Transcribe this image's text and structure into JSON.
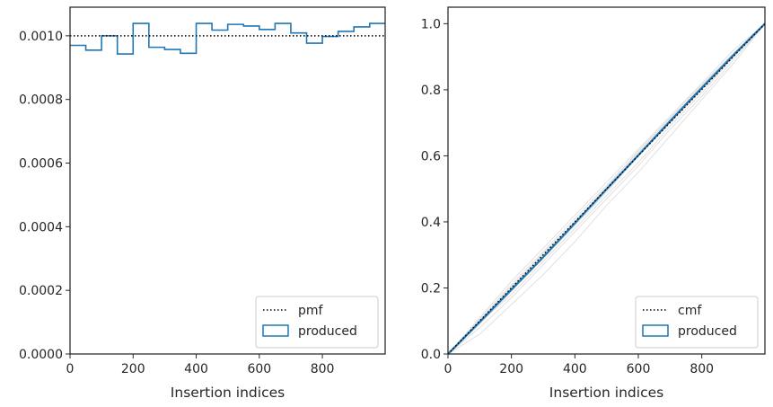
{
  "chart_data": [
    {
      "type": "line",
      "subtype": "step-histogram",
      "xlabel": "Insertion indices",
      "ylabel": "",
      "xlim": [
        0,
        999
      ],
      "ylim": [
        0,
        0.00109
      ],
      "x_ticks": [
        0,
        200,
        400,
        600,
        800
      ],
      "x_tick_labels": [
        "0",
        "200",
        "400",
        "600",
        "800"
      ],
      "y_ticks": [
        0,
        0.0002,
        0.0004,
        0.0006,
        0.0008,
        0.001
      ],
      "y_tick_labels": [
        "0.0000",
        "0.0002",
        "0.0004",
        "0.0006",
        "0.0008",
        "0.0010"
      ],
      "grid": false,
      "legend_position": "lower right",
      "reference_line": {
        "name": "pmf",
        "y": 0.001,
        "style": "dotted",
        "color": "#000000"
      },
      "series": [
        {
          "name": "produced",
          "color": "#1f77b4",
          "bin_edges": [
            0,
            50,
            100,
            150,
            200,
            250,
            300,
            350,
            400,
            450,
            500,
            550,
            600,
            650,
            700,
            750,
            800,
            850,
            900,
            950,
            999
          ],
          "values": [
            0.00097,
            0.000955,
            0.001,
            0.000943,
            0.001039,
            0.000964,
            0.000957,
            0.000945,
            0.001039,
            0.001018,
            0.001036,
            0.001031,
            0.00102,
            0.001039,
            0.001009,
            0.000977,
            0.000998,
            0.001014,
            0.001028,
            0.001039
          ]
        }
      ],
      "legend": [
        {
          "label": "pmf",
          "kind": "dotted-line"
        },
        {
          "label": "produced",
          "kind": "patch"
        }
      ]
    },
    {
      "type": "line",
      "xlabel": "Insertion indices",
      "ylabel": "",
      "xlim": [
        0,
        999
      ],
      "ylim": [
        0,
        1.05
      ],
      "x_ticks": [
        0,
        200,
        400,
        600,
        800
      ],
      "x_tick_labels": [
        "0",
        "200",
        "400",
        "600",
        "800"
      ],
      "y_ticks": [
        0,
        0.2,
        0.4,
        0.6,
        0.8,
        1.0
      ],
      "y_tick_labels": [
        "0.0",
        "0.2",
        "0.4",
        "0.6",
        "0.8",
        "1.0"
      ],
      "grid": false,
      "legend_position": "lower right",
      "reference_line": {
        "name": "cmf",
        "x": [
          0,
          999
        ],
        "y": [
          0,
          1.0
        ],
        "style": "dotted",
        "color": "#000000"
      },
      "series": [
        {
          "name": "produced",
          "color": "#1f77b4",
          "x": [
            0,
            100,
            200,
            300,
            400,
            500,
            600,
            700,
            800,
            900,
            999
          ],
          "y": [
            0,
            0.097,
            0.195,
            0.293,
            0.396,
            0.499,
            0.602,
            0.705,
            0.806,
            0.905,
            1.0
          ]
        }
      ],
      "background_traces": {
        "color": "#d9d9d9",
        "x": [
          0,
          100,
          200,
          300,
          400,
          500,
          600,
          700,
          800,
          900,
          999
        ],
        "traces": [
          [
            0,
            0.105,
            0.21,
            0.31,
            0.41,
            0.51,
            0.61,
            0.71,
            0.81,
            0.91,
            1.0
          ],
          [
            0,
            0.09,
            0.19,
            0.29,
            0.39,
            0.49,
            0.6,
            0.7,
            0.8,
            0.9,
            1.0
          ],
          [
            0,
            0.08,
            0.17,
            0.27,
            0.37,
            0.47,
            0.57,
            0.68,
            0.78,
            0.89,
            1.0
          ],
          [
            0,
            0.11,
            0.22,
            0.32,
            0.42,
            0.52,
            0.62,
            0.72,
            0.82,
            0.92,
            1.0
          ],
          [
            0,
            0.06,
            0.15,
            0.24,
            0.34,
            0.45,
            0.55,
            0.66,
            0.77,
            0.88,
            1.0
          ],
          [
            0,
            0.1,
            0.2,
            0.305,
            0.4,
            0.505,
            0.615,
            0.715,
            0.815,
            0.91,
            1.0
          ],
          [
            0,
            0.095,
            0.18,
            0.28,
            0.38,
            0.48,
            0.58,
            0.69,
            0.79,
            0.9,
            1.0
          ],
          [
            0,
            0.1,
            0.205,
            0.3,
            0.395,
            0.5,
            0.6,
            0.7,
            0.8,
            0.9,
            1.0
          ]
        ]
      },
      "legend": [
        {
          "label": "cmf",
          "kind": "dotted-line"
        },
        {
          "label": "produced",
          "kind": "patch"
        }
      ]
    }
  ]
}
